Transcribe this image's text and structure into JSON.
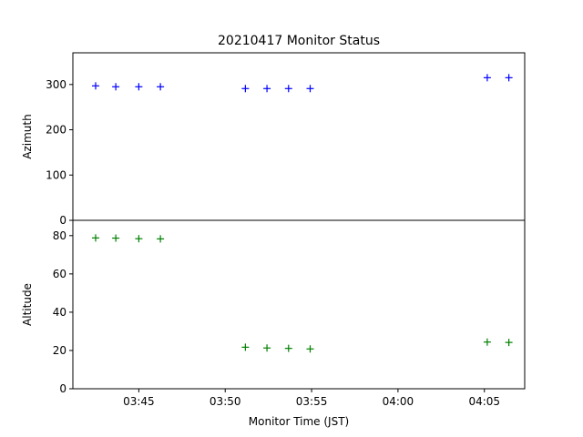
{
  "chart_data": {
    "type": "scatter",
    "title": "20210417 Monitor Status",
    "xlabel": "Monitor Time (JST)",
    "x_ticks": [
      "03:45",
      "03:50",
      "03:55",
      "04:00",
      "04:05"
    ],
    "x_tick_values": [
      "03:45",
      "03:50",
      "03:55",
      "04:00",
      "04:05"
    ],
    "xlim": [
      "03:41:11",
      "04:07:20"
    ],
    "marker": "+",
    "panels": [
      {
        "name": "azimuth",
        "ylabel": "Azimuth",
        "ylim": [
          0,
          370
        ],
        "y_ticks": [
          0,
          100,
          200,
          300
        ],
        "color": "#0000ff",
        "x": [
          "03:42:30",
          "03:43:40",
          "03:45:00",
          "03:46:15",
          "03:51:10",
          "03:52:25",
          "03:53:40",
          "03:54:55",
          "04:05:10",
          "04:06:25"
        ],
        "values": [
          297,
          295,
          295,
          295,
          291,
          291,
          291,
          291,
          315,
          315
        ]
      },
      {
        "name": "altitude",
        "ylabel": "Altitude",
        "ylim": [
          0,
          88
        ],
        "y_ticks": [
          0,
          20,
          40,
          60,
          80
        ],
        "color": "#008000",
        "x": [
          "03:42:30",
          "03:43:40",
          "03:45:00",
          "03:46:15",
          "03:51:10",
          "03:52:25",
          "03:53:40",
          "03:54:55",
          "04:05:10",
          "04:06:25"
        ],
        "values": [
          78.8,
          78.7,
          78.4,
          78.3,
          21.7,
          21.3,
          21.1,
          20.8,
          24.4,
          24.2
        ]
      }
    ]
  }
}
